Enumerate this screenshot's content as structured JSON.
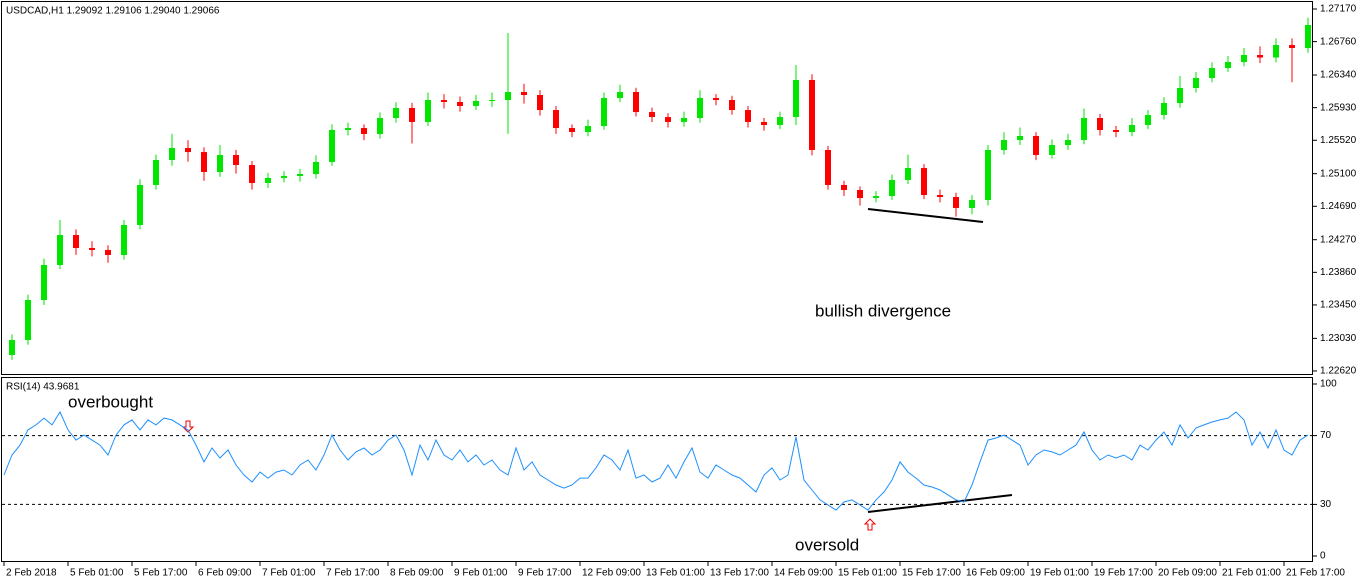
{
  "chart_data": [
    {
      "type": "candlestick",
      "title": "USDCAD,H1  1.29092 1.29106 1.29040 1.29066",
      "annotations": [
        "bullish divergence"
      ],
      "up_color": "#00e600",
      "down_color": "#ff0000",
      "categories": [
        "2 Feb 2018",
        null,
        null,
        null,
        "5 Feb 01:00",
        null,
        null,
        null,
        "5 Feb 17:00",
        null,
        null,
        null,
        "6 Feb 09:00",
        null,
        null,
        null,
        "7 Feb 01:00",
        null,
        null,
        null,
        "7 Feb 17:00",
        null,
        null,
        null,
        "8 Feb 09:00",
        null,
        null,
        null,
        "9 Feb 01:00",
        null,
        null,
        null,
        "9 Feb 17:00",
        null,
        null,
        null,
        "12 Feb 09:00",
        null,
        null,
        null,
        "13 Feb 01:00",
        null,
        null,
        null,
        "13 Feb 17:00",
        null,
        null,
        null,
        "14 Feb 09:00",
        null,
        null,
        null,
        "15 Feb 01:00",
        null,
        null,
        null,
        "15 Feb 17:00",
        null,
        null,
        null,
        "16 Feb 09:00",
        null,
        null,
        null,
        "19 Feb 01:00",
        null,
        null,
        null,
        "19 Feb 17:00",
        null,
        null,
        null,
        "20 Feb 09:00",
        null,
        null,
        null,
        "21 Feb 01:00",
        null,
        null,
        null,
        "21 Feb 17:00",
        null
      ],
      "open": [
        1.22821,
        1.23009,
        1.23512,
        1.23952,
        1.24329,
        1.24166,
        1.24141,
        1.24078,
        1.24455,
        1.24958,
        1.25272,
        1.25423,
        1.25372,
        1.25121,
        1.25335,
        1.25209,
        1.24983,
        1.25046,
        1.25071,
        1.25096,
        1.25247,
        1.25649,
        1.25674,
        1.25599,
        1.258,
        1.25926,
        1.2575,
        1.26026,
        1.26001,
        1.25951,
        1.26014,
        1.26026,
        1.26127,
        1.26089,
        1.259,
        1.25674,
        1.25624,
        1.25699,
        1.26051,
        1.26127,
        1.25875,
        1.25812,
        1.2575,
        1.258,
        1.26051,
        1.26026,
        1.259,
        1.2575,
        1.25712,
        1.25812,
        1.26278,
        1.25398,
        1.24958,
        1.24895,
        1.24794,
        1.24819,
        1.25021,
        1.25171,
        1.24832,
        1.24807,
        1.24669,
        1.24769,
        1.25398,
        1.25523,
        1.25574,
        1.25335,
        1.2546,
        1.25523,
        1.258,
        1.25649,
        1.25624,
        1.25712,
        1.25838,
        1.25988,
        1.26177,
        1.26303,
        1.26428,
        1.26504,
        1.26592,
        1.2656,
        1.26717,
        1.2668
      ],
      "high": [
        1.2308,
        1.2358,
        1.2403,
        1.2452,
        1.244,
        1.2425,
        1.242,
        1.2452,
        1.2503,
        1.2534,
        1.256,
        1.2552,
        1.2543,
        1.2546,
        1.254,
        1.2526,
        1.2511,
        1.2513,
        1.2516,
        1.2533,
        1.2572,
        1.2574,
        1.2572,
        1.2587,
        1.26,
        1.2599,
        1.2612,
        1.261,
        1.2607,
        1.2609,
        1.2612,
        1.26868,
        1.2623,
        1.2615,
        1.2595,
        1.2572,
        1.2578,
        1.2612,
        1.2622,
        1.2618,
        1.2593,
        1.2586,
        1.2588,
        1.2615,
        1.261,
        1.2608,
        1.2595,
        1.258,
        1.2588,
        1.26466,
        1.2635,
        1.2545,
        1.2501,
        1.2494,
        1.2488,
        1.2509,
        1.2534,
        1.2522,
        1.249,
        1.2486,
        1.2483,
        1.2546,
        1.2562,
        1.2568,
        1.2562,
        1.2553,
        1.256,
        1.2592,
        1.2585,
        1.257,
        1.258,
        1.259,
        1.2606,
        1.2633,
        1.2638,
        1.265,
        1.2658,
        1.2668,
        1.267,
        1.268,
        1.268,
        1.2706
      ],
      "low": [
        1.2276,
        1.2295,
        1.2345,
        1.239,
        1.2408,
        1.2406,
        1.2398,
        1.2402,
        1.244,
        1.249,
        1.252,
        1.2525,
        1.2501,
        1.2506,
        1.251,
        1.249,
        1.2492,
        1.2499,
        1.25,
        1.2504,
        1.252,
        1.2558,
        1.2552,
        1.2554,
        1.2574,
        1.2548,
        1.257,
        1.2592,
        1.2588,
        1.259,
        1.2594,
        1.256,
        1.2598,
        1.2583,
        1.256,
        1.2556,
        1.2557,
        1.2565,
        1.26,
        1.2582,
        1.2575,
        1.2568,
        1.2569,
        1.2574,
        1.2596,
        1.2584,
        1.2568,
        1.2564,
        1.2566,
        1.25712,
        1.2533,
        1.249,
        1.2482,
        1.247,
        1.2474,
        1.2477,
        1.2497,
        1.2478,
        1.2474,
        1.2456,
        1.2459,
        1.247,
        1.2534,
        1.2546,
        1.2527,
        1.2529,
        1.254,
        1.2547,
        1.2558,
        1.2556,
        1.2557,
        1.2566,
        1.2578,
        1.2593,
        1.2612,
        1.2625,
        1.2638,
        1.2645,
        1.2649,
        1.265,
        1.2625,
        1.2662
      ],
      "close": [
        1.23009,
        1.23512,
        1.23952,
        1.24329,
        1.24166,
        1.24141,
        1.24078,
        1.24455,
        1.24958,
        1.25272,
        1.25423,
        1.25372,
        1.25121,
        1.25335,
        1.25209,
        1.24983,
        1.25046,
        1.25071,
        1.25096,
        1.25247,
        1.25649,
        1.25674,
        1.25599,
        1.258,
        1.25926,
        1.2575,
        1.26026,
        1.26001,
        1.25951,
        1.26014,
        1.26026,
        1.26127,
        1.26089,
        1.259,
        1.25674,
        1.25624,
        1.25699,
        1.26051,
        1.26127,
        1.25875,
        1.25812,
        1.2575,
        1.258,
        1.26051,
        1.26026,
        1.259,
        1.2575,
        1.25712,
        1.25812,
        1.26278,
        1.25398,
        1.24958,
        1.24895,
        1.24794,
        1.24819,
        1.25021,
        1.25171,
        1.24832,
        1.24807,
        1.24669,
        1.24769,
        1.25398,
        1.25523,
        1.25574,
        1.25335,
        1.2546,
        1.25523,
        1.258,
        1.25649,
        1.25624,
        1.25712,
        1.25838,
        1.25988,
        1.26177,
        1.26303,
        1.26428,
        1.26504,
        1.26592,
        1.2656,
        1.26717,
        1.2668,
        1.26969
      ],
      "ylim": [
        1.22582,
        1.27258
      ],
      "yticks": [
        {
          "value": 1.2717,
          "label": "1.27170"
        },
        {
          "value": 1.2676,
          "label": "1.26760"
        },
        {
          "value": 1.2634,
          "label": "1.26340"
        },
        {
          "value": 1.2593,
          "label": "1.25930"
        },
        {
          "value": 1.2552,
          "label": "1.25520"
        },
        {
          "value": 1.251,
          "label": "1.25100"
        },
        {
          "value": 1.2469,
          "label": "1.24690"
        },
        {
          "value": 1.2427,
          "label": "1.24270"
        },
        {
          "value": 1.2386,
          "label": "1.23860"
        },
        {
          "value": 1.2345,
          "label": "1.23450"
        },
        {
          "value": 1.2303,
          "label": "1.23030"
        },
        {
          "value": 1.2262,
          "label": "1.22620"
        }
      ]
    },
    {
      "type": "line",
      "title": "RSI(14) 43.9681",
      "annotations": [
        "overbought",
        "oversold"
      ],
      "color": "#1e90ff",
      "values": [
        47.1,
        58.7,
        64.5,
        73.3,
        76.2,
        80.2,
        76.2,
        83.7,
        73.3,
        67.4,
        70.3,
        67.4,
        64.5,
        58.7,
        70.3,
        76.2,
        79.1,
        73.3,
        79.1,
        76.2,
        80.2,
        79.1,
        76.2,
        73.3,
        64.5,
        54.7,
        62.8,
        57.0,
        61.6,
        52.9,
        47.1,
        43.0,
        48.8,
        45.3,
        48.8,
        50.0,
        47.1,
        52.9,
        55.8,
        50.0,
        58.7,
        70.3,
        61.6,
        55.8,
        60.5,
        62.8,
        58.7,
        61.6,
        67.4,
        70.3,
        61.6,
        47.1,
        64.5,
        55.8,
        67.4,
        58.7,
        55.8,
        61.6,
        54.7,
        58.7,
        52.9,
        55.8,
        50.0,
        47.1,
        62.8,
        50.0,
        54.7,
        47.1,
        44.2,
        41.3,
        39.5,
        41.3,
        45.3,
        45.3,
        51.2,
        58.7,
        55.8,
        50.0,
        61.6,
        45.3,
        47.1,
        43.0,
        45.3,
        52.9,
        45.3,
        54.7,
        62.8,
        48.8,
        45.3,
        52.9,
        50.0,
        47.1,
        45.3,
        41.3,
        37.2,
        47.1,
        51.2,
        44.2,
        47.1,
        69.2,
        44.2,
        38.4,
        32.6,
        29.7,
        26.7,
        31.4,
        32.6,
        29.7,
        26.7,
        32.6,
        37.2,
        44.2,
        54.7,
        48.8,
        45.3,
        41.3,
        40.1,
        38.4,
        35.5,
        32.6,
        31.4,
        41.3,
        54.7,
        67.4,
        68.6,
        70.3,
        67.4,
        64.5,
        52.9,
        58.7,
        61.6,
        60.5,
        58.7,
        61.6,
        64.5,
        72.1,
        61.6,
        55.8,
        58.7,
        57.0,
        58.7,
        55.8,
        64.5,
        61.6,
        67.4,
        72.1,
        64.5,
        76.2,
        68.6,
        74.4,
        76.2,
        77.9,
        79.1,
        80.2,
        83.7,
        79.1,
        64.5,
        72.1,
        62.8,
        73.3,
        61.6,
        58.7,
        67.4,
        70.3
      ],
      "ylim": [
        0,
        100
      ],
      "yticks": [
        100,
        70,
        30,
        0
      ],
      "level_style": "dashed"
    }
  ]
}
